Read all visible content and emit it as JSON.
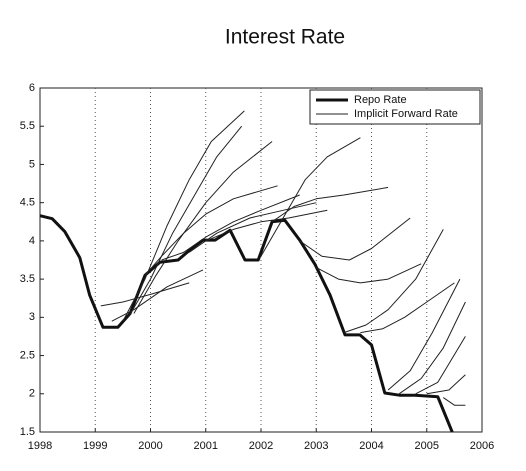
{
  "chart_data": {
    "type": "line",
    "title": "Interest Rate",
    "xlim": [
      1998,
      2006
    ],
    "xticks": [
      1998,
      1999,
      2000,
      2001,
      2002,
      2003,
      2004,
      2005,
      2006
    ],
    "ylim": [
      1.5,
      6
    ],
    "yticks": [
      1.5,
      2,
      2.5,
      3,
      3.5,
      4,
      4.5,
      5,
      5.5,
      6
    ],
    "grid": "vertical-dotted",
    "legend": "top-right",
    "series": [
      {
        "name": "Repo Rate",
        "color": "#111111",
        "width": 3,
        "x": [
          1998.0,
          1998.22,
          1998.45,
          1998.72,
          1998.9,
          1999.14,
          1999.41,
          1999.63,
          1999.9,
          2000.17,
          2000.5,
          2000.71,
          2000.95,
          2001.17,
          2001.44,
          2001.71,
          2001.95,
          2002.2,
          2002.43,
          2002.7,
          2002.98,
          2003.25,
          2003.52,
          2003.79,
          2004.0,
          2004.24,
          2004.52,
          2004.79,
          2005.2,
          2005.46
        ],
        "values": [
          4.33,
          4.29,
          4.12,
          3.78,
          3.29,
          2.87,
          2.87,
          3.05,
          3.55,
          3.72,
          3.75,
          3.88,
          4.01,
          4.01,
          4.14,
          3.75,
          3.75,
          4.25,
          4.27,
          4.01,
          3.69,
          3.29,
          2.77,
          2.77,
          2.64,
          2.01,
          1.98,
          1.98,
          1.96,
          1.5
        ]
      },
      {
        "name": "Implicit Forward Rate",
        "color": "#222222",
        "width": 1,
        "curves": [
          {
            "x": [
              1999.1,
              1999.5,
              2000,
              2000.7
            ],
            "values": [
              3.15,
              3.2,
              3.3,
              3.45
            ]
          },
          {
            "x": [
              1999.3,
              1999.7,
              2000.3,
              2000.95
            ],
            "values": [
              2.95,
              3.1,
              3.4,
              3.62
            ]
          },
          {
            "x": [
              1999.5,
              1999.9,
              2000.3,
              2000.7,
              2001.1,
              2001.7
            ],
            "values": [
              2.95,
              3.5,
              4.2,
              4.8,
              5.3,
              5.7
            ]
          },
          {
            "x": [
              1999.6,
              2000,
              2000.4,
              2000.8,
              2001.2,
              2001.65
            ],
            "values": [
              3.0,
              3.5,
              4.1,
              4.6,
              5.1,
              5.5
            ]
          },
          {
            "x": [
              1999.7,
              2000.1,
              2000.5,
              2001,
              2001.5,
              2002.2
            ],
            "values": [
              3.05,
              3.55,
              4.0,
              4.5,
              4.9,
              5.3
            ]
          },
          {
            "x": [
              1999.9,
              2000.2,
              2000.6,
              2001,
              2001.5,
              2002.3
            ],
            "values": [
              3.55,
              3.8,
              4.1,
              4.35,
              4.55,
              4.72
            ]
          },
          {
            "x": [
              2000.2,
              2000.6,
              2001,
              2001.5,
              2002,
              2002.7
            ],
            "values": [
              3.75,
              3.85,
              4.05,
              4.25,
              4.4,
              4.6
            ]
          },
          {
            "x": [
              2000.7,
              2001.2,
              2001.8,
              2002.4,
              2003
            ],
            "values": [
              3.85,
              4.1,
              4.3,
              4.4,
              4.5
            ]
          },
          {
            "x": [
              2001,
              2001.5,
              2002,
              2002.5,
              2003.2
            ],
            "values": [
              4.0,
              4.15,
              4.25,
              4.3,
              4.4
            ]
          },
          {
            "x": [
              2002.0,
              2002.4,
              2002.8,
              2003.2,
              2003.8
            ],
            "values": [
              3.8,
              4.3,
              4.8,
              5.1,
              5.35
            ]
          },
          {
            "x": [
              2002.2,
              2002.6,
              2003,
              2003.5,
              2004.3
            ],
            "values": [
              4.25,
              4.45,
              4.55,
              4.6,
              4.7
            ]
          },
          {
            "x": [
              2002.7,
              2003.1,
              2003.6,
              2004,
              2004.7
            ],
            "values": [
              4.0,
              3.8,
              3.75,
              3.9,
              4.3
            ]
          },
          {
            "x": [
              2003.0,
              2003.4,
              2003.8,
              2004.3,
              2004.9
            ],
            "values": [
              3.65,
              3.5,
              3.45,
              3.5,
              3.7
            ]
          },
          {
            "x": [
              2003.5,
              2003.9,
              2004.3,
              2004.8,
              2005.3
            ],
            "values": [
              2.8,
              2.9,
              3.1,
              3.5,
              4.15
            ]
          },
          {
            "x": [
              2003.8,
              2004.2,
              2004.6,
              2005,
              2005.5
            ],
            "values": [
              2.8,
              2.85,
              3.0,
              3.2,
              3.45
            ]
          },
          {
            "x": [
              2004.3,
              2004.7,
              2005.1,
              2005.6
            ],
            "values": [
              2.05,
              2.3,
              2.8,
              3.5
            ]
          },
          {
            "x": [
              2004.5,
              2004.9,
              2005.3,
              2005.7
            ],
            "values": [
              2.0,
              2.2,
              2.6,
              3.2
            ]
          },
          {
            "x": [
              2004.8,
              2005.2,
              2005.7
            ],
            "values": [
              2.0,
              2.15,
              2.75
            ]
          },
          {
            "x": [
              2005.0,
              2005.4,
              2005.7
            ],
            "values": [
              2.0,
              2.05,
              2.25
            ]
          },
          {
            "x": [
              2005.3,
              2005.5,
              2005.7
            ],
            "values": [
              1.95,
              1.85,
              1.85
            ]
          }
        ]
      }
    ]
  }
}
